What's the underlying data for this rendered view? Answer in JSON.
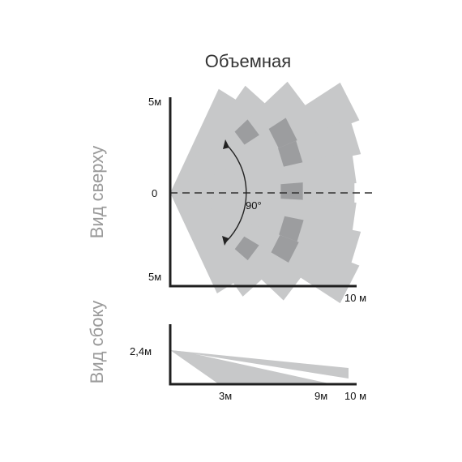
{
  "title": "Объемная",
  "top_view": {
    "label": "Вид сверху",
    "tick_top": "5м",
    "tick_zero": "0",
    "tick_bottom": "5м",
    "tick_x": "10 м",
    "angle": "90°"
  },
  "side_view": {
    "label": "Вид сбоку",
    "tick_height": "2,4м",
    "tick_3": "3м",
    "tick_9": "9м",
    "tick_10": "10 м"
  },
  "colors": {
    "beam_light": "#c7c8c9",
    "beam_dark": "#9c9d9f",
    "axis": "#1f1f1f"
  }
}
